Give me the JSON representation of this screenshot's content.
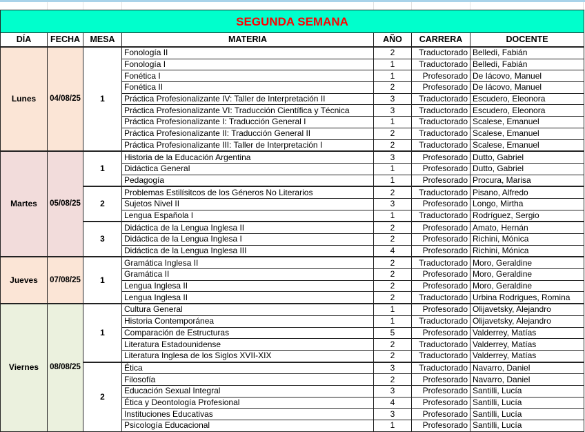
{
  "title": "SEGUNDA SEMANA",
  "headers": [
    "DÍA",
    "FECHA",
    "MESA",
    "MATERIA",
    "AÑO",
    "CARRERA",
    "DOCENTE"
  ],
  "colors": {
    "title_bg": "#00ffcc",
    "title_text": "#ff0000",
    "lunes": "#fbe5d6",
    "martes": "#f2dcdb",
    "jueves": "#fbe5d6",
    "viernes": "#ebf1de"
  },
  "days": [
    {
      "dia": "Lunes",
      "fecha": "04/08/25",
      "color": "#fbe5d6",
      "mesas": [
        {
          "mesa": "1",
          "rows": [
            [
              "Fonología II",
              "2",
              "Traductorado",
              "Belledi, Fabián"
            ],
            [
              "Fonología I",
              "1",
              "Traductorado",
              "Belledi, Fabián"
            ],
            [
              "Fonética I",
              "1",
              "Profesorado",
              "De Iácovo, Manuel"
            ],
            [
              "Fonética II",
              "2",
              "Profesorado",
              "De Iácovo, Manuel"
            ],
            [
              "Práctica Profesionalizante IV: Taller de Interpretación II",
              "3",
              "Traductorado",
              "Escudero, Eleonora"
            ],
            [
              "Práctica Profesionalizante VI: Traducción Científica y Técnica",
              "3",
              "Traductorado",
              "Escudero, Eleonora"
            ],
            [
              "Práctica Profesionalizante I: Traducción General I",
              "1",
              "Traductorado",
              "Scalese, Emanuel"
            ],
            [
              "Práctica Profesionalizante II: Traducción General II",
              "2",
              "Traductorado",
              "Scalese, Emanuel"
            ],
            [
              "Práctica Profesionalizante III: Taller de Interpretación I",
              "2",
              "Traductorado",
              "Scalese, Emanuel"
            ]
          ]
        }
      ]
    },
    {
      "dia": "Martes",
      "fecha": "05/08/25",
      "color": "#f2dcdb",
      "mesas": [
        {
          "mesa": "1",
          "rows": [
            [
              "Historia de la Educación Argentina",
              "3",
              "Profesorado",
              "Dutto, Gabriel"
            ],
            [
              "Didáctica General",
              "1",
              "Profesorado",
              "Dutto, Gabriel"
            ],
            [
              "Pedagogía",
              "1",
              "Profesorado",
              "Procura, Marisa"
            ]
          ]
        },
        {
          "mesa": "2",
          "rows": [
            [
              "Problemas Estilísitcos de los Géneros No Literarios",
              "2",
              "Traductorado",
              "Pisano, Alfredo"
            ],
            [
              "Sujetos Nivel II",
              "3",
              "Profesorado",
              "Longo, Mirtha"
            ],
            [
              "Lengua Española I",
              "1",
              "Traductorado",
              "Rodríguez, Sergio"
            ]
          ]
        },
        {
          "mesa": "3",
          "rows": [
            [
              "Didáctica de la Lengua Inglesa II",
              "2",
              "Profesorado",
              "Amato, Hernán"
            ],
            [
              "Didáctica de la Lengua Inglesa I",
              "2",
              "Profesorado",
              "Richini, Mónica"
            ],
            [
              "Didáctica de la Lengua Inglesa III",
              "4",
              "Profesorado",
              "Richini, Mónica"
            ]
          ]
        }
      ]
    },
    {
      "dia": "Jueves",
      "fecha": "07/08/25",
      "color": "#fbe5d6",
      "mesas": [
        {
          "mesa": "1",
          "rows": [
            [
              "Gramática Inglesa II",
              "2",
              "Traductorado",
              "Moro, Geraldine"
            ],
            [
              "Gramática II",
              "2",
              "Profesorado",
              "Moro, Geraldine"
            ],
            [
              "Lengua Inglesa II",
              "2",
              "Profesorado",
              "Moro, Geraldine"
            ],
            [
              "Lengua Inglesa II",
              "2",
              "Traductorado",
              "Urbina Rodrigues, Romina"
            ]
          ]
        }
      ]
    },
    {
      "dia": "Viernes",
      "fecha": "08/08/25",
      "color": "#ebf1de",
      "mesas": [
        {
          "mesa": "1",
          "rows": [
            [
              "Cultura General",
              "1",
              "Profesorado",
              "Olijavetsky, Alejandro"
            ],
            [
              "Historia Contemporánea",
              "1",
              "Traductorado",
              "Olijavetsky, Alejandro"
            ],
            [
              "Comparación de Estructuras",
              "5",
              "Profesorado",
              "Valderrey, Matías"
            ],
            [
              "Literatura Estadounidense",
              "2",
              "Traductorado",
              "Valderrey, Matías"
            ],
            [
              "Literatura Inglesa de los Siglos XVII-XIX",
              "2",
              "Traductorado",
              "Valderrey, Matías"
            ]
          ]
        },
        {
          "mesa": "2",
          "rows": [
            [
              "Ética",
              "3",
              "Traductorado",
              "Navarro, Daniel"
            ],
            [
              "Filosofía",
              "2",
              "Profesorado",
              "Navarro, Daniel"
            ],
            [
              "Educación Sexual Integral",
              "3",
              "Profesorado",
              "Santilli, Lucía"
            ],
            [
              "Ética y Deontología Profesional",
              "4",
              "Profesorado",
              "Santilli, Lucía"
            ],
            [
              "Instituciones Educativas",
              "3",
              "Profesorado",
              "Santilli, Lucía"
            ],
            [
              "Psicología Educacional",
              "1",
              "Profesorado",
              "Santilli, Lucía"
            ]
          ]
        }
      ]
    }
  ]
}
